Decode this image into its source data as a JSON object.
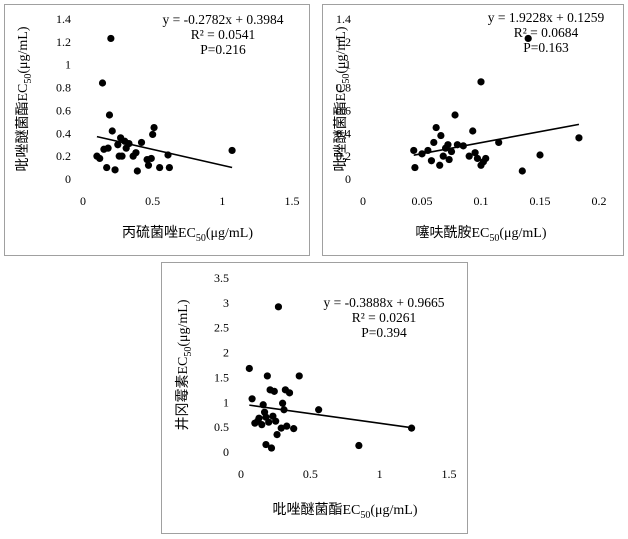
{
  "chart_data": [
    {
      "type": "scatter",
      "xlabel": "丙硫菌唑EC",
      "xlabel_sub": "50",
      "xlabel_unit": "(μg/mL)",
      "ylabel": "吡唑醚菌酯EC",
      "ylabel_sub": "50",
      "ylabel_unit": "(μg/mL)",
      "xlim": [
        0,
        1.5
      ],
      "ylim": [
        0,
        1.4
      ],
      "xticks": [
        "0",
        "0.5",
        "1",
        "1.5"
      ],
      "yticks": [
        "0",
        "0.2",
        "0.4",
        "0.6",
        "0.8",
        "1",
        "1.2",
        "1.4"
      ],
      "equation": "y = -0.2782x + 0.3984",
      "r2": "R² = 0.0541",
      "p": "P=0.216",
      "trendline": {
        "slope": -0.2782,
        "intercept": 0.3984,
        "x_range": [
          0.1,
          1.07
        ]
      },
      "points": [
        [
          0.1,
          0.2
        ],
        [
          0.12,
          0.18
        ],
        [
          0.14,
          0.84
        ],
        [
          0.15,
          0.26
        ],
        [
          0.17,
          0.1
        ],
        [
          0.18,
          0.27
        ],
        [
          0.19,
          0.56
        ],
        [
          0.2,
          1.23
        ],
        [
          0.21,
          0.42
        ],
        [
          0.23,
          0.08
        ],
        [
          0.25,
          0.3
        ],
        [
          0.26,
          0.2
        ],
        [
          0.27,
          0.36
        ],
        [
          0.28,
          0.2
        ],
        [
          0.3,
          0.33
        ],
        [
          0.31,
          0.27
        ],
        [
          0.33,
          0.31
        ],
        [
          0.36,
          0.2
        ],
        [
          0.38,
          0.23
        ],
        [
          0.39,
          0.07
        ],
        [
          0.42,
          0.32
        ],
        [
          0.46,
          0.17
        ],
        [
          0.47,
          0.12
        ],
        [
          0.49,
          0.18
        ],
        [
          0.5,
          0.39
        ],
        [
          0.51,
          0.45
        ],
        [
          0.55,
          0.1
        ],
        [
          0.61,
          0.21
        ],
        [
          0.62,
          0.1
        ],
        [
          1.07,
          0.25
        ]
      ]
    },
    {
      "type": "scatter",
      "xlabel": "噻呋酰胺EC",
      "xlabel_sub": "50",
      "xlabel_unit": "(μg/mL)",
      "ylabel": "吡唑醚菌酯EC",
      "ylabel_sub": "50",
      "ylabel_unit": "(μg/mL)",
      "xlim": [
        0,
        0.2
      ],
      "ylim": [
        0,
        1.4
      ],
      "xticks": [
        "0",
        "0.05",
        "0.1",
        "0.15",
        "0.2"
      ],
      "yticks": [
        "0",
        "0.2",
        "0.4",
        "0.6",
        "0.8",
        "1",
        "1.2",
        "1.4"
      ],
      "equation": "y = 1.9228x + 0.1259",
      "r2": "R² = 0.0684",
      "p": "P=0.163",
      "trendline": {
        "slope": 1.9228,
        "intercept": 0.1259,
        "x_range": [
          0.043,
          0.183
        ]
      },
      "points": [
        [
          0.043,
          0.25
        ],
        [
          0.044,
          0.1
        ],
        [
          0.05,
          0.22
        ],
        [
          0.055,
          0.25
        ],
        [
          0.058,
          0.16
        ],
        [
          0.06,
          0.32
        ],
        [
          0.062,
          0.45
        ],
        [
          0.065,
          0.12
        ],
        [
          0.066,
          0.38
        ],
        [
          0.068,
          0.2
        ],
        [
          0.07,
          0.27
        ],
        [
          0.072,
          0.3
        ],
        [
          0.073,
          0.17
        ],
        [
          0.075,
          0.24
        ],
        [
          0.078,
          0.56
        ],
        [
          0.08,
          0.3
        ],
        [
          0.085,
          0.29
        ],
        [
          0.09,
          0.2
        ],
        [
          0.093,
          0.42
        ],
        [
          0.095,
          0.23
        ],
        [
          0.097,
          0.18
        ],
        [
          0.1,
          0.85
        ],
        [
          0.1,
          0.12
        ],
        [
          0.102,
          0.15
        ],
        [
          0.104,
          0.18
        ],
        [
          0.115,
          0.32
        ],
        [
          0.135,
          0.07
        ],
        [
          0.14,
          1.23
        ],
        [
          0.15,
          0.21
        ],
        [
          0.183,
          0.36
        ]
      ]
    },
    {
      "type": "scatter",
      "xlabel": "吡唑醚菌酯EC",
      "xlabel_sub": "50",
      "xlabel_unit": "(μg/mL)",
      "ylabel": "井冈霉素EC",
      "ylabel_sub": "50",
      "ylabel_unit": "(μg/mL)",
      "xlim": [
        0,
        1.5
      ],
      "ylim": [
        0,
        3.5
      ],
      "xticks": [
        "0",
        "0.5",
        "1",
        "1.5"
      ],
      "yticks": [
        "0",
        "0.5",
        "1",
        "1.5",
        "2",
        "2.5",
        "3",
        "3.5"
      ],
      "equation": "y = -0.3888x + 0.9665",
      "r2": "R² = 0.0261",
      "p": "P=0.394",
      "trendline": {
        "slope": -0.3888,
        "intercept": 0.9665,
        "x_range": [
          0.06,
          1.23
        ]
      },
      "points": [
        [
          0.06,
          1.68
        ],
        [
          0.08,
          1.07
        ],
        [
          0.1,
          0.58
        ],
        [
          0.12,
          0.62
        ],
        [
          0.13,
          0.68
        ],
        [
          0.15,
          0.55
        ],
        [
          0.16,
          0.95
        ],
        [
          0.17,
          0.8
        ],
        [
          0.18,
          0.15
        ],
        [
          0.18,
          0.7
        ],
        [
          0.19,
          1.53
        ],
        [
          0.2,
          0.6
        ],
        [
          0.21,
          1.25
        ],
        [
          0.22,
          0.08
        ],
        [
          0.23,
          0.72
        ],
        [
          0.24,
          1.22
        ],
        [
          0.25,
          0.62
        ],
        [
          0.26,
          0.35
        ],
        [
          0.27,
          2.92
        ],
        [
          0.29,
          0.48
        ],
        [
          0.3,
          0.98
        ],
        [
          0.31,
          0.85
        ],
        [
          0.32,
          1.25
        ],
        [
          0.33,
          0.52
        ],
        [
          0.35,
          1.19
        ],
        [
          0.38,
          0.47
        ],
        [
          0.42,
          1.53
        ],
        [
          0.56,
          0.85
        ],
        [
          0.85,
          0.13
        ],
        [
          1.23,
          0.48
        ]
      ]
    }
  ]
}
